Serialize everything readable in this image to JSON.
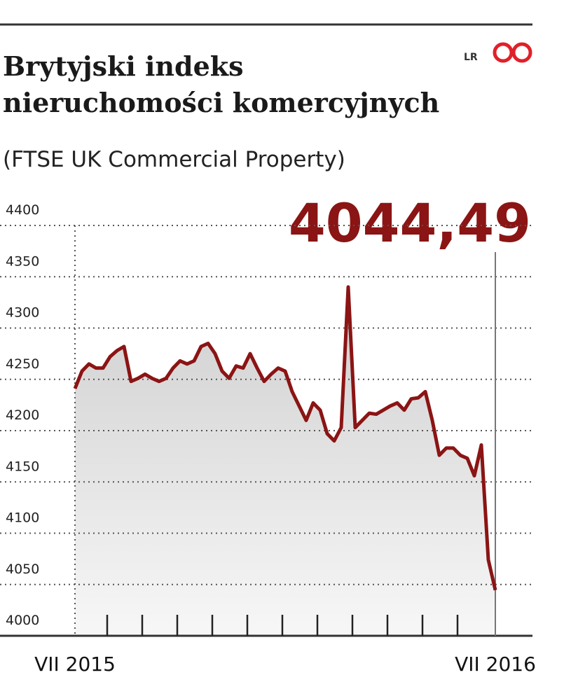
{
  "chart_data": {
    "type": "line",
    "title": [
      "Brytyjski indeks",
      "nieruchomości komercyjnych"
    ],
    "subtitle": "(FTSE UK Commercial Property)",
    "source": "LR",
    "annotation": "4044,49",
    "categories": [
      "VII 2015",
      null,
      null,
      null,
      null,
      null,
      null,
      null,
      null,
      null,
      null,
      null,
      null,
      null,
      null,
      null,
      null,
      null,
      null,
      null,
      null,
      null,
      null,
      null,
      null,
      null,
      null,
      null,
      null,
      null,
      null,
      null,
      null,
      null,
      null,
      null,
      null,
      null,
      null,
      null,
      null,
      null,
      null,
      null,
      null,
      null,
      null,
      null,
      null,
      null,
      null,
      null,
      null,
      null,
      null,
      null,
      null,
      null,
      null,
      null,
      "VII 2016"
    ],
    "series": [
      {
        "name": "FTSE UK Commercial Property",
        "color": "#8b1414",
        "values": [
          4241,
          4258,
          4265,
          4261,
          4261,
          4272,
          4278,
          4282,
          4248,
          4251,
          4255,
          4251,
          4248,
          4251,
          4261,
          4268,
          4265,
          4268,
          4282,
          4285,
          4275,
          4258,
          4251,
          4263,
          4261,
          4275,
          4261,
          4248,
          4255,
          4261,
          4258,
          4238,
          4224,
          4210,
          4227,
          4220,
          4197,
          4190,
          4203,
          4340,
          4203,
          4210,
          4217,
          4216,
          4220,
          4224,
          4227,
          4220,
          4231,
          4232,
          4238,
          4210,
          4176,
          4183,
          4183,
          4176,
          4173,
          4156,
          4186,
          4074,
          4044.49
        ]
      }
    ],
    "ylim": [
      4000,
      4400
    ],
    "yticks": [
      4000,
      4050,
      4100,
      4150,
      4200,
      4250,
      4300,
      4350,
      4400
    ],
    "grid": true
  }
}
